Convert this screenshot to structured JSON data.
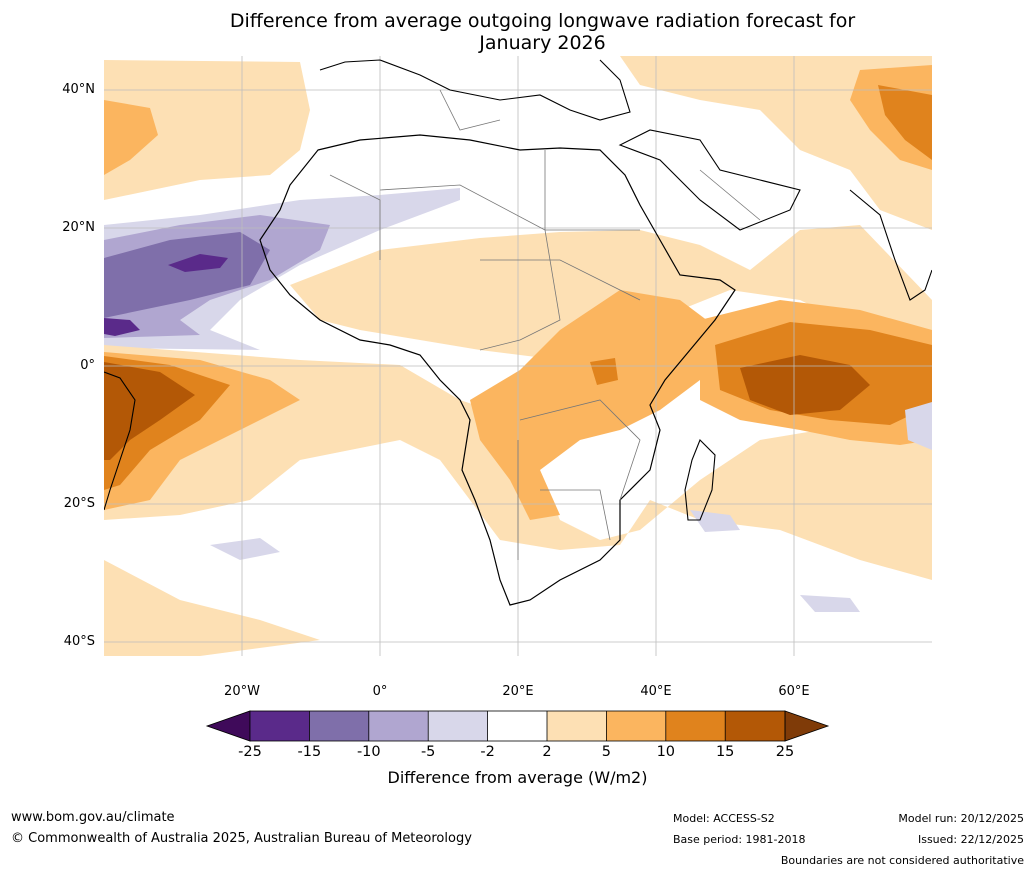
{
  "title_line1": "Difference from average outgoing longwave radiation forecast for",
  "title_line2": "January 2026",
  "lat_labels": [
    "40°N",
    "20°N",
    "0°",
    "20°S",
    "40°S"
  ],
  "lon_labels": [
    "20°W",
    "0°",
    "20°E",
    "40°E",
    "60°E"
  ],
  "colorbar": {
    "title": "Difference from average (W/m2)",
    "tick_labels": [
      "-25",
      "-15",
      "-10",
      "-5",
      "-2",
      "2",
      "5",
      "10",
      "15",
      "25"
    ],
    "colors": [
      "#3f0a5a",
      "#5a2a8a",
      "#7f6faa",
      "#b0a6d0",
      "#d8d7ea",
      "#ffffff",
      "#fde0b4",
      "#fbb55f",
      "#e0831d",
      "#b35806",
      "#7f3b08"
    ]
  },
  "footer": {
    "website": "www.bom.gov.au/climate",
    "copyright": "© Commonwealth of Australia 2025, Australian Bureau of Meteorology",
    "model": "Model: ACCESS-S2",
    "base_period": "Base period: 1981-2018",
    "model_run": "Model run: 20/12/2025",
    "issued": "Issued: 22/12/2025",
    "disclaimer": "Boundaries are not considered authoritative"
  }
}
